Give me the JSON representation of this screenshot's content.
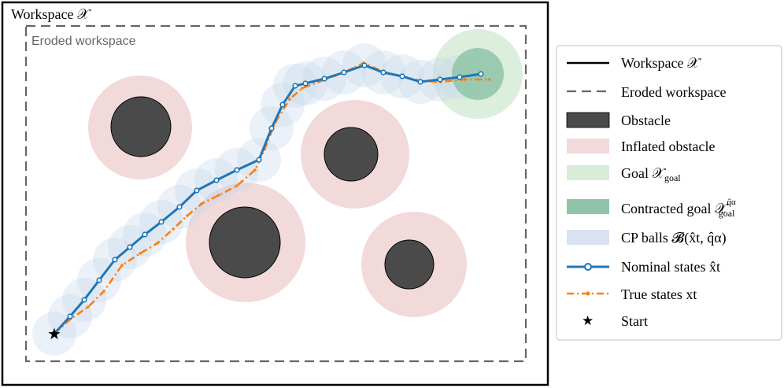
{
  "figure": {
    "workspace_label": "Workspace 𝒳",
    "eroded_label": "Eroded workspace"
  },
  "colors": {
    "workspace_border": "#000000",
    "eroded_border": "#666666",
    "obstacle": "#4a4a4a",
    "inflated": "#f2d9da",
    "goal": "#d8ecd8",
    "contracted_goal": "#8fc4a8",
    "cp_ball": "#d8e2f1",
    "nominal": "#1f77b4",
    "true_states": "#ff7f0e",
    "start": "#000000"
  },
  "legend": {
    "items": [
      {
        "key": "workspace",
        "label": "Workspace 𝒳"
      },
      {
        "key": "eroded",
        "label": "Eroded workspace"
      },
      {
        "key": "obstacle",
        "label": "Obstacle"
      },
      {
        "key": "inflated",
        "label": "Inflated obstacle"
      },
      {
        "key": "goal",
        "label": "Goal 𝒳",
        "sub": "goal"
      },
      {
        "key": "contracted",
        "label": "Contracted goal 𝒳",
        "sub": "goal",
        "sup": "q̂α"
      },
      {
        "key": "cp",
        "label": "CP balls 𝓑(x̂t, q̂α)"
      },
      {
        "key": "nominal",
        "label": "Nominal states x̂t"
      },
      {
        "key": "true",
        "label": "True states xt"
      },
      {
        "key": "start",
        "label": "Start"
      }
    ]
  }
}
